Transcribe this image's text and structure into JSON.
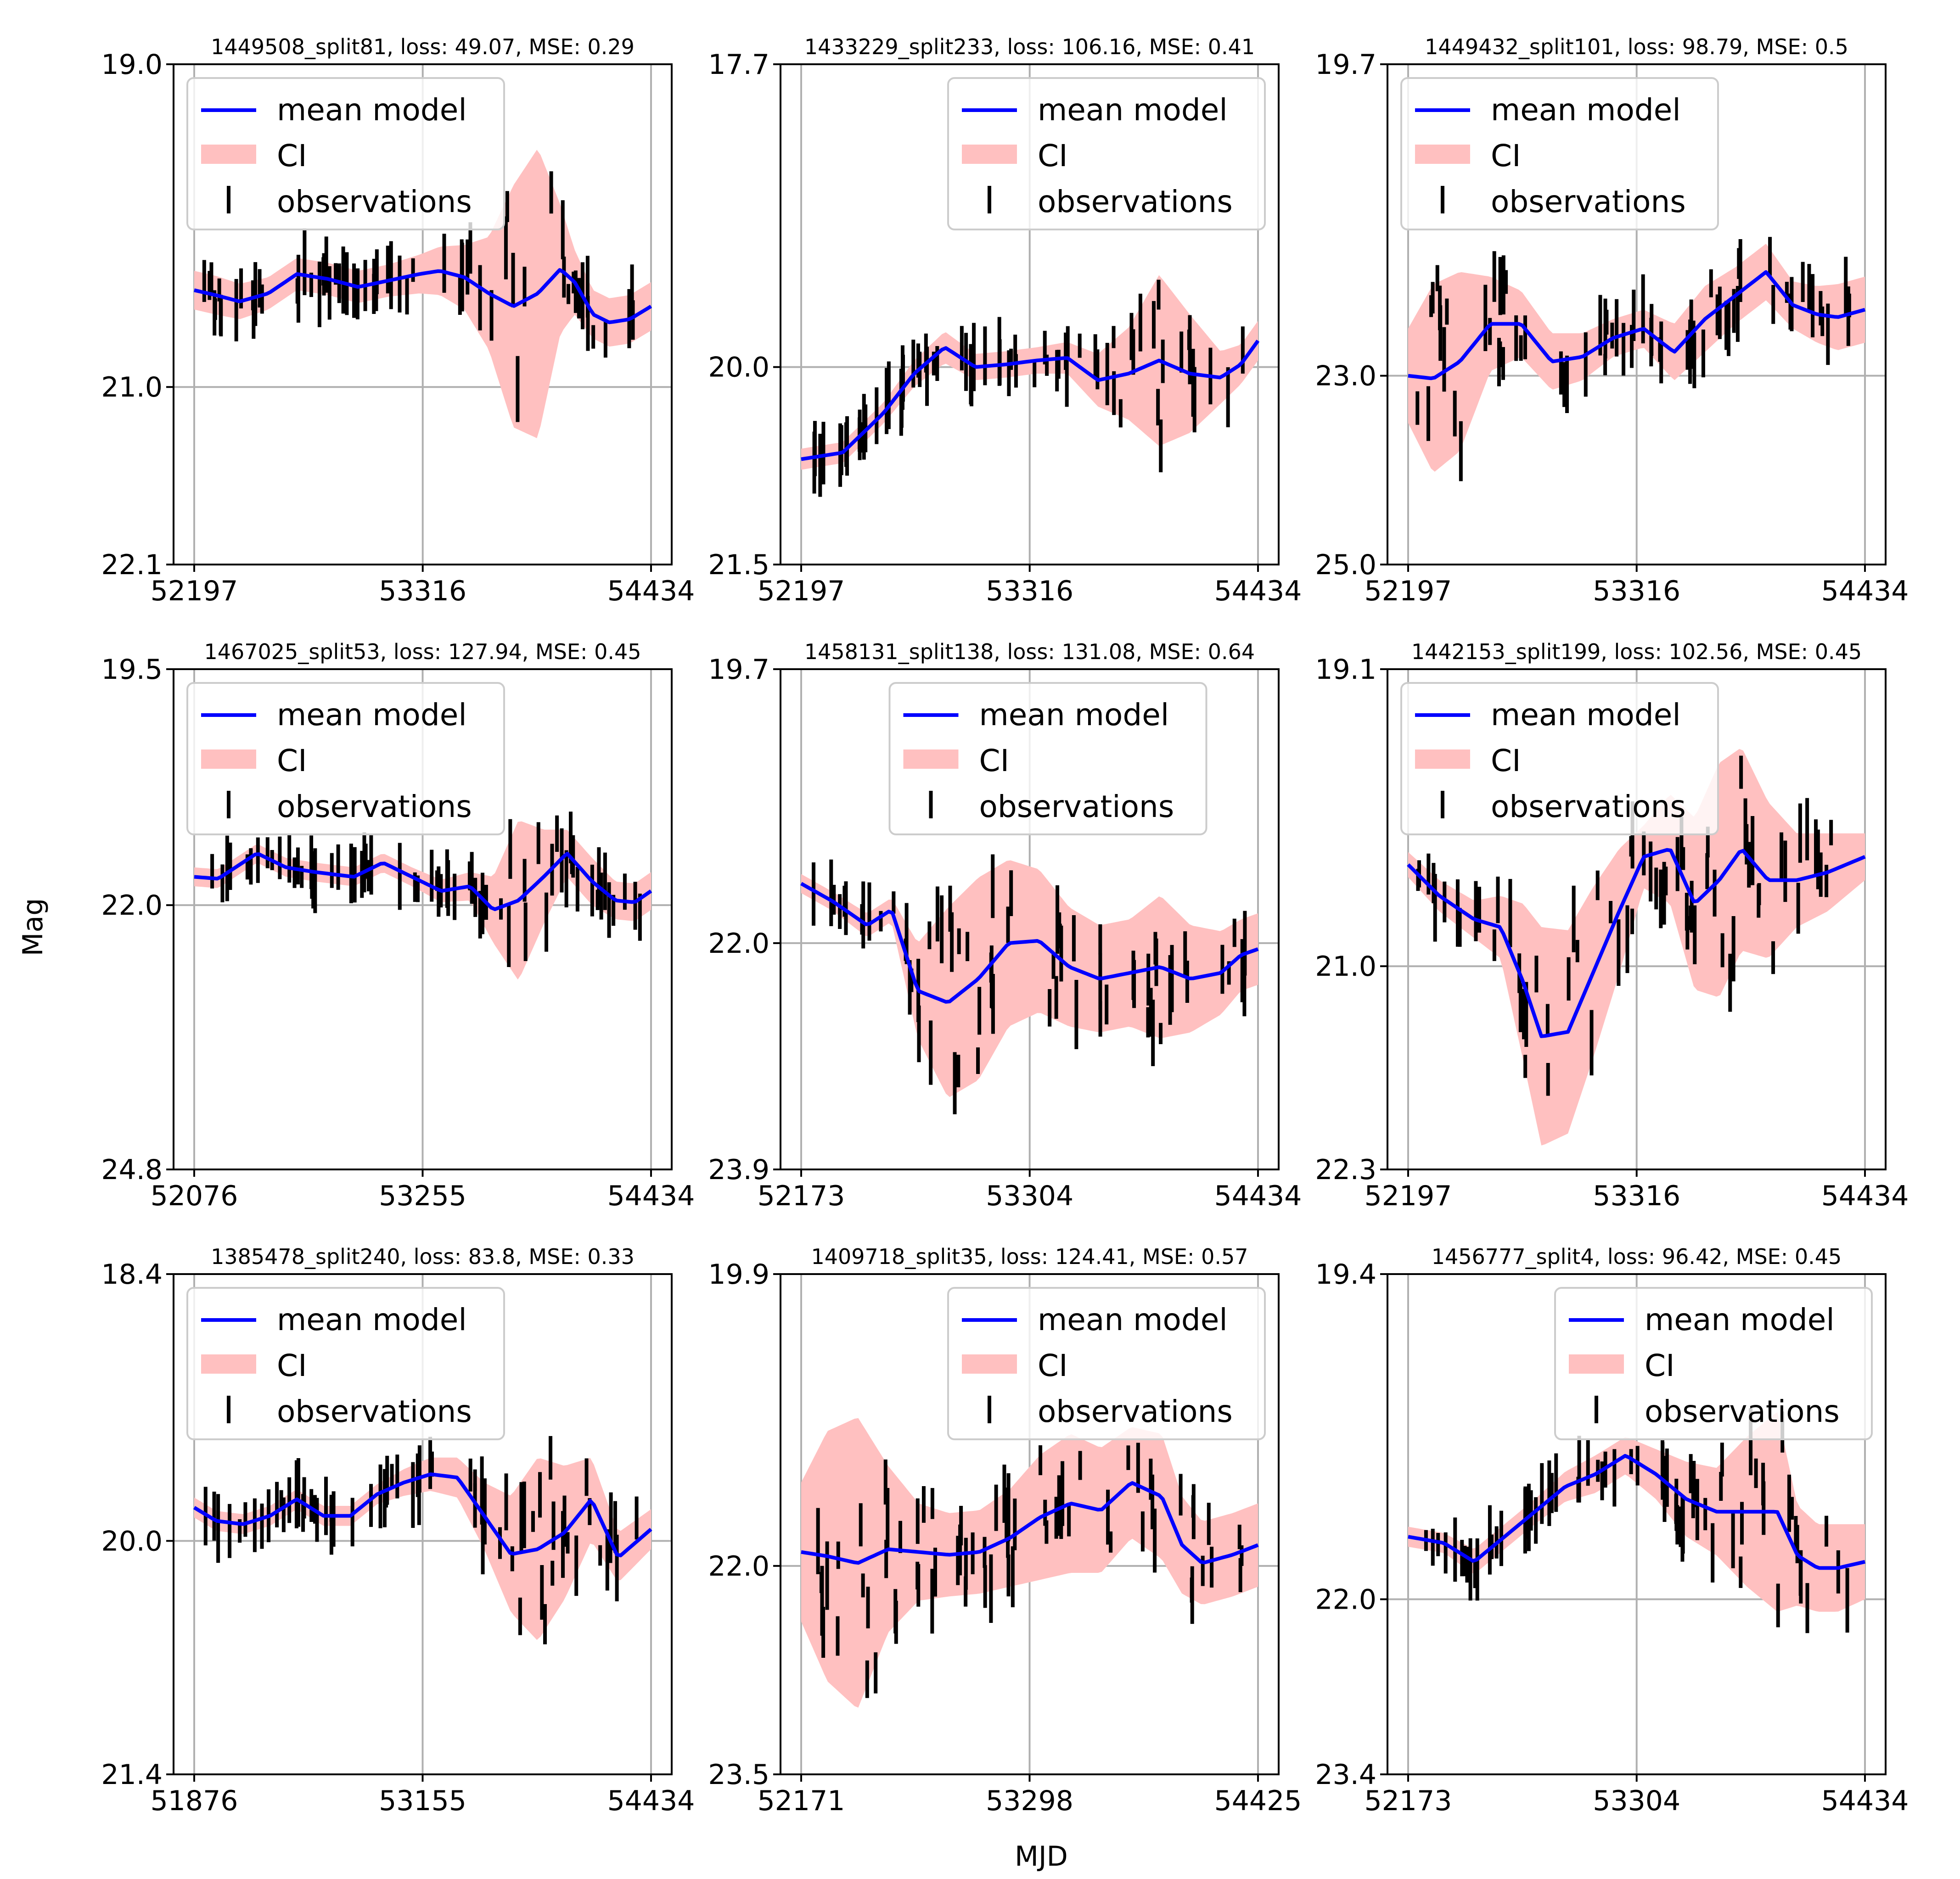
{
  "figure": {
    "ylabel": "Mag",
    "xlabel": "MJD"
  },
  "colors": {
    "mean_model": "#0000ff",
    "ci": "#ffc0c0",
    "observations": "#000000",
    "grid": "#b0b0b0"
  },
  "legend": [
    "mean model",
    "CI",
    "observations"
  ],
  "chart_data": [
    {
      "type": "line",
      "title": "1449508_split81, loss: 49.07, MSE: 0.29",
      "legend_loc": "upper-left",
      "xticks": [
        "52197",
        "53316",
        "54434"
      ],
      "xlim": [
        52197,
        54434
      ],
      "yticks": [
        "19.0",
        "21.0",
        "22.1"
      ],
      "ylim": [
        19.0,
        22.1
      ],
      "ytick_vals": [
        19.0,
        21.0,
        22.1
      ],
      "model_x": [
        52197,
        52300,
        52420,
        52560,
        52700,
        52850,
        53000,
        53150,
        53300,
        53400,
        53520,
        53640,
        53760,
        53880,
        53990,
        54060,
        54150,
        54230,
        54330,
        54434
      ],
      "model_y": [
        20.4,
        20.43,
        20.47,
        20.42,
        20.3,
        20.33,
        20.38,
        20.34,
        20.3,
        20.28,
        20.32,
        20.42,
        20.5,
        20.42,
        20.27,
        20.35,
        20.55,
        20.6,
        20.58,
        20.5
      ],
      "ci_half": [
        0.12,
        0.12,
        0.11,
        0.1,
        0.1,
        0.1,
        0.1,
        0.1,
        0.12,
        0.15,
        0.2,
        0.35,
        0.75,
        0.9,
        0.4,
        0.2,
        0.15,
        0.15,
        0.15,
        0.15
      ]
    },
    {
      "type": "line",
      "title": "1433229_split233, loss: 106.16, MSE: 0.41",
      "legend_loc": "upper-right",
      "xticks": [
        "52197",
        "53316",
        "54434"
      ],
      "xlim": [
        52197,
        54434
      ],
      "yticks": [
        "17.7",
        "20.0",
        "21.5"
      ],
      "ylim": [
        17.7,
        21.5
      ],
      "ytick_vals": [
        17.7,
        20.0,
        21.5
      ],
      "model_x": [
        52197,
        52400,
        52600,
        52750,
        52900,
        53050,
        53200,
        53350,
        53500,
        53650,
        53800,
        53950,
        54100,
        54250,
        54350,
        54434
      ],
      "model_y": [
        20.7,
        20.65,
        20.35,
        20.05,
        19.85,
        20.0,
        19.98,
        19.95,
        19.93,
        20.1,
        20.05,
        19.95,
        20.05,
        20.08,
        19.98,
        19.8
      ],
      "ci_half": [
        0.08,
        0.08,
        0.08,
        0.1,
        0.12,
        0.1,
        0.1,
        0.1,
        0.12,
        0.2,
        0.35,
        0.65,
        0.45,
        0.2,
        0.15,
        0.15
      ]
    },
    {
      "type": "line",
      "title": "1449432_split101, loss: 98.79, MSE: 0.5",
      "legend_loc": "upper-left",
      "xticks": [
        "52197",
        "53316",
        "54434"
      ],
      "xlim": [
        52197,
        54434
      ],
      "yticks": [
        "19.7",
        "23.0",
        "25.0"
      ],
      "ylim": [
        19.7,
        25.0
      ],
      "ytick_vals": [
        19.7,
        23.0,
        25.0
      ],
      "model_x": [
        52197,
        52320,
        52450,
        52600,
        52750,
        52900,
        53050,
        53200,
        53350,
        53500,
        53650,
        53800,
        53950,
        54080,
        54200,
        54300,
        54434
      ],
      "model_y": [
        23.0,
        23.03,
        22.85,
        22.45,
        22.45,
        22.85,
        22.8,
        22.6,
        22.5,
        22.75,
        22.4,
        22.15,
        21.9,
        22.25,
        22.35,
        22.38,
        22.3
      ],
      "ci_half": [
        0.5,
        1.0,
        0.95,
        0.5,
        0.35,
        0.3,
        0.25,
        0.2,
        0.2,
        0.3,
        0.35,
        0.3,
        0.3,
        0.25,
        0.3,
        0.35,
        0.35
      ]
    },
    {
      "type": "line",
      "title": "1467025_split53, loss: 127.94, MSE: 0.45",
      "legend_loc": "upper-left",
      "xticks": [
        "52076",
        "53255",
        "54434"
      ],
      "xlim": [
        52076,
        54434
      ],
      "yticks": [
        "19.5",
        "22.0",
        "24.8"
      ],
      "ylim": [
        19.5,
        24.8
      ],
      "ytick_vals": [
        19.5,
        22.0,
        24.8
      ],
      "model_x": [
        52076,
        52200,
        52400,
        52550,
        52700,
        52900,
        53050,
        53200,
        53350,
        53500,
        53620,
        53750,
        53880,
        54000,
        54130,
        54250,
        54350,
        54434
      ],
      "model_y": [
        21.7,
        21.72,
        21.45,
        21.6,
        21.65,
        21.7,
        21.55,
        21.7,
        21.85,
        21.8,
        22.05,
        21.95,
        21.7,
        21.45,
        21.75,
        21.95,
        21.97,
        21.85
      ],
      "ci_half": [
        0.1,
        0.1,
        0.1,
        0.1,
        0.1,
        0.1,
        0.1,
        0.1,
        0.12,
        0.15,
        0.35,
        0.85,
        0.5,
        0.25,
        0.25,
        0.2,
        0.2,
        0.2
      ]
    },
    {
      "type": "line",
      "title": "1458131_split138, loss: 131.08, MSE: 0.64",
      "legend_loc": "upper-center",
      "xticks": [
        "52173",
        "53304",
        "54434"
      ],
      "xlim": [
        52173,
        54434
      ],
      "yticks": [
        "19.7",
        "22.0",
        "23.9"
      ],
      "ylim": [
        19.7,
        23.9
      ],
      "ytick_vals": [
        19.7,
        22.0,
        23.9
      ],
      "model_x": [
        52173,
        52330,
        52500,
        52620,
        52750,
        52900,
        53050,
        53200,
        53350,
        53500,
        53650,
        53800,
        53950,
        54100,
        54250,
        54350,
        54434
      ],
      "model_y": [
        21.5,
        21.65,
        21.85,
        21.72,
        22.4,
        22.5,
        22.3,
        22.0,
        21.98,
        22.2,
        22.3,
        22.25,
        22.2,
        22.3,
        22.25,
        22.1,
        22.05
      ],
      "ci_half": [
        0.08,
        0.08,
        0.1,
        0.1,
        0.4,
        0.8,
        0.85,
        0.7,
        0.6,
        0.5,
        0.45,
        0.45,
        0.6,
        0.45,
        0.35,
        0.3,
        0.3
      ]
    },
    {
      "type": "line",
      "title": "1442153_split199, loss: 102.56, MSE: 0.45",
      "legend_loc": "upper-left",
      "xticks": [
        "52197",
        "53316",
        "54434"
      ],
      "xlim": [
        52197,
        54434
      ],
      "yticks": [
        "19.1",
        "21.0",
        "22.3"
      ],
      "ylim": [
        19.1,
        22.3
      ],
      "ytick_vals": [
        19.1,
        21.0,
        22.3
      ],
      "model_x": [
        52197,
        52350,
        52520,
        52650,
        52760,
        52850,
        52980,
        53100,
        53230,
        53350,
        53480,
        53600,
        53720,
        53830,
        53960,
        54100,
        54250,
        54434
      ],
      "model_y": [
        20.35,
        20.55,
        20.7,
        20.75,
        21.1,
        21.45,
        21.42,
        21.05,
        20.65,
        20.3,
        20.25,
        20.6,
        20.45,
        20.25,
        20.45,
        20.45,
        20.4,
        20.3
      ],
      "ci_half": [
        0.08,
        0.1,
        0.12,
        0.2,
        0.5,
        0.7,
        0.65,
        0.55,
        0.4,
        0.2,
        0.35,
        0.55,
        0.75,
        0.65,
        0.5,
        0.3,
        0.25,
        0.15
      ]
    },
    {
      "type": "line",
      "title": "1385478_split240, loss: 83.8, MSE: 0.33",
      "legend_loc": "upper-left",
      "xticks": [
        "51876",
        "53155",
        "54434"
      ],
      "xlim": [
        51876,
        54434
      ],
      "yticks": [
        "18.4",
        "20.0",
        "21.4"
      ],
      "ylim": [
        18.4,
        21.4
      ],
      "ytick_vals": [
        18.4,
        20.0,
        21.4
      ],
      "model_x": [
        51876,
        52000,
        52150,
        52300,
        52450,
        52600,
        52750,
        52900,
        53050,
        53200,
        53350,
        53500,
        53650,
        53800,
        53950,
        54100,
        54250,
        54434
      ],
      "model_y": [
        19.8,
        19.88,
        19.9,
        19.85,
        19.75,
        19.85,
        19.85,
        19.72,
        19.65,
        19.6,
        19.62,
        19.85,
        20.08,
        20.05,
        19.95,
        19.75,
        20.1,
        19.93
      ],
      "ci_half": [
        0.06,
        0.06,
        0.06,
        0.06,
        0.06,
        0.06,
        0.06,
        0.06,
        0.08,
        0.1,
        0.12,
        0.2,
        0.35,
        0.55,
        0.4,
        0.25,
        0.15,
        0.12
      ]
    },
    {
      "type": "line",
      "title": "1409718_split35, loss: 124.41, MSE: 0.57",
      "legend_loc": "upper-right",
      "xticks": [
        "52171",
        "53298",
        "54425"
      ],
      "xlim": [
        52171,
        54425
      ],
      "yticks": [
        "19.9",
        "22.0",
        "23.5"
      ],
      "ylim": [
        19.9,
        23.5
      ],
      "ytick_vals": [
        19.9,
        22.0,
        23.5
      ],
      "model_x": [
        52171,
        52300,
        52450,
        52600,
        52750,
        52900,
        53050,
        53200,
        53350,
        53500,
        53650,
        53800,
        53950,
        54050,
        54150,
        54300,
        54425
      ],
      "model_y": [
        21.9,
        21.93,
        21.98,
        21.88,
        21.9,
        21.92,
        21.9,
        21.8,
        21.65,
        21.55,
        21.6,
        21.4,
        21.5,
        21.85,
        21.98,
        21.92,
        21.85
      ],
      "ci_half": [
        0.5,
        0.9,
        1.05,
        0.6,
        0.35,
        0.3,
        0.3,
        0.35,
        0.45,
        0.5,
        0.45,
        0.4,
        0.45,
        0.35,
        0.3,
        0.3,
        0.3
      ]
    },
    {
      "type": "line",
      "title": "1456777_split4, loss: 96.42, MSE: 0.45",
      "legend_loc": "upper-right",
      "xticks": [
        "52173",
        "53304",
        "54434"
      ],
      "xlim": [
        52173,
        54434
      ],
      "yticks": [
        "19.4",
        "22.0",
        "23.4"
      ],
      "ylim": [
        19.4,
        23.4
      ],
      "ytick_vals": [
        19.4,
        22.0,
        23.4
      ],
      "model_x": [
        52173,
        52350,
        52500,
        52650,
        52800,
        52950,
        53100,
        53250,
        53400,
        53550,
        53700,
        53850,
        54000,
        54100,
        54200,
        54300,
        54434
      ],
      "model_y": [
        21.5,
        21.55,
        21.7,
        21.5,
        21.3,
        21.1,
        21.0,
        20.85,
        21.0,
        21.2,
        21.3,
        21.3,
        21.3,
        21.65,
        21.75,
        21.75,
        21.7
      ],
      "ci_half": [
        0.08,
        0.08,
        0.1,
        0.1,
        0.1,
        0.12,
        0.15,
        0.15,
        0.2,
        0.3,
        0.35,
        0.6,
        0.8,
        0.4,
        0.35,
        0.35,
        0.3
      ]
    }
  ]
}
